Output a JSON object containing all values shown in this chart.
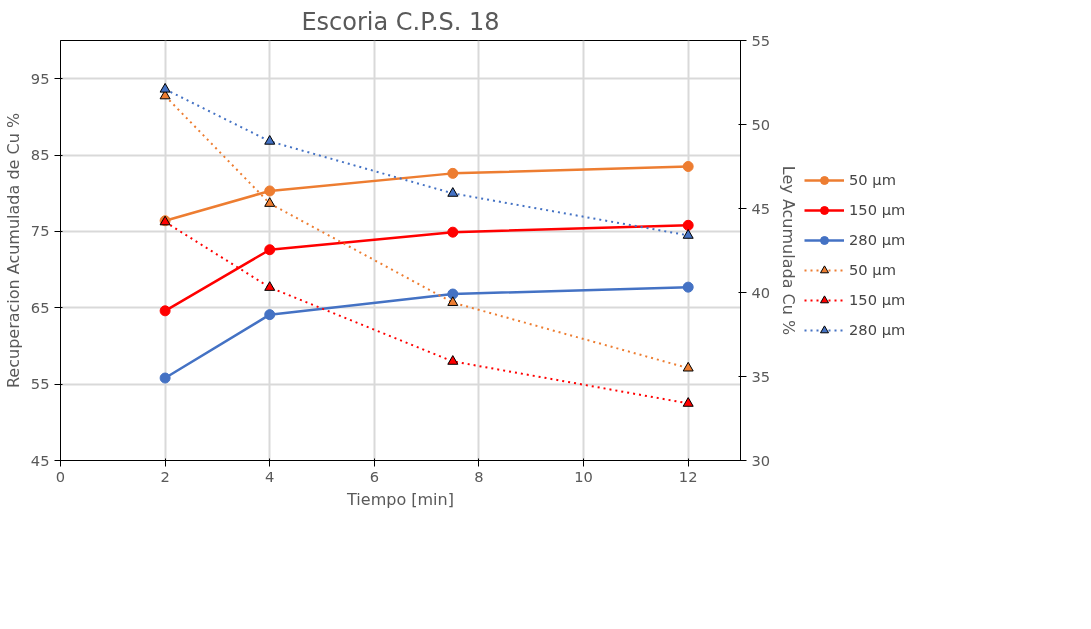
{
  "chart_data": {
    "type": "line",
    "title": "Escoria C.P.S. 18",
    "xlabel": "Tiempo [min]",
    "ylabel": "Recuperacion Acumulada de Cu %",
    "y2label": "Ley Acumulada Cu %",
    "x": [
      2,
      4,
      7.5,
      12
    ],
    "xlim": [
      0,
      13
    ],
    "xticks": [
      0,
      2,
      4,
      6,
      8,
      10,
      12
    ],
    "ylim": [
      45,
      100
    ],
    "yticks": [
      45,
      55,
      65,
      75,
      85,
      95
    ],
    "y2lim": [
      30,
      55
    ],
    "y2ticks": [
      30,
      35,
      40,
      45,
      50,
      55
    ],
    "grid": true,
    "legend": "right",
    "series": [
      {
        "name": "50 µm",
        "color": "#ed7d31",
        "values": [
          76.4,
          80.3,
          82.6,
          83.5
        ],
        "marker": "circle",
        "line_style": "solid"
      },
      {
        "name": "150 µm",
        "color": "#ff0000",
        "values": [
          64.6,
          72.6,
          74.9,
          75.8
        ],
        "marker": "circle",
        "line_style": "solid"
      },
      {
        "name": "280 µm",
        "color": "#4472c4",
        "values": [
          55.8,
          64.1,
          66.8,
          67.7
        ],
        "marker": "circle",
        "line_style": "solid"
      },
      {
        "name": "50 µm",
        "color": "#ed7d31",
        "values": [
          51.7,
          45.3,
          39.4,
          35.5
        ],
        "marker": "triangle",
        "line_style": "dotted",
        "axis": "y2"
      },
      {
        "name": "150 µm",
        "color": "#ff0000",
        "values": [
          44.2,
          40.3,
          35.9,
          33.4
        ],
        "marker": "triangle",
        "line_style": "dotted",
        "axis": "y2"
      },
      {
        "name": "280 µm",
        "color": "#4472c4",
        "values": [
          52.1,
          49.0,
          45.9,
          43.4
        ],
        "marker": "triangle",
        "line_style": "dotted",
        "axis": "y2"
      }
    ]
  }
}
